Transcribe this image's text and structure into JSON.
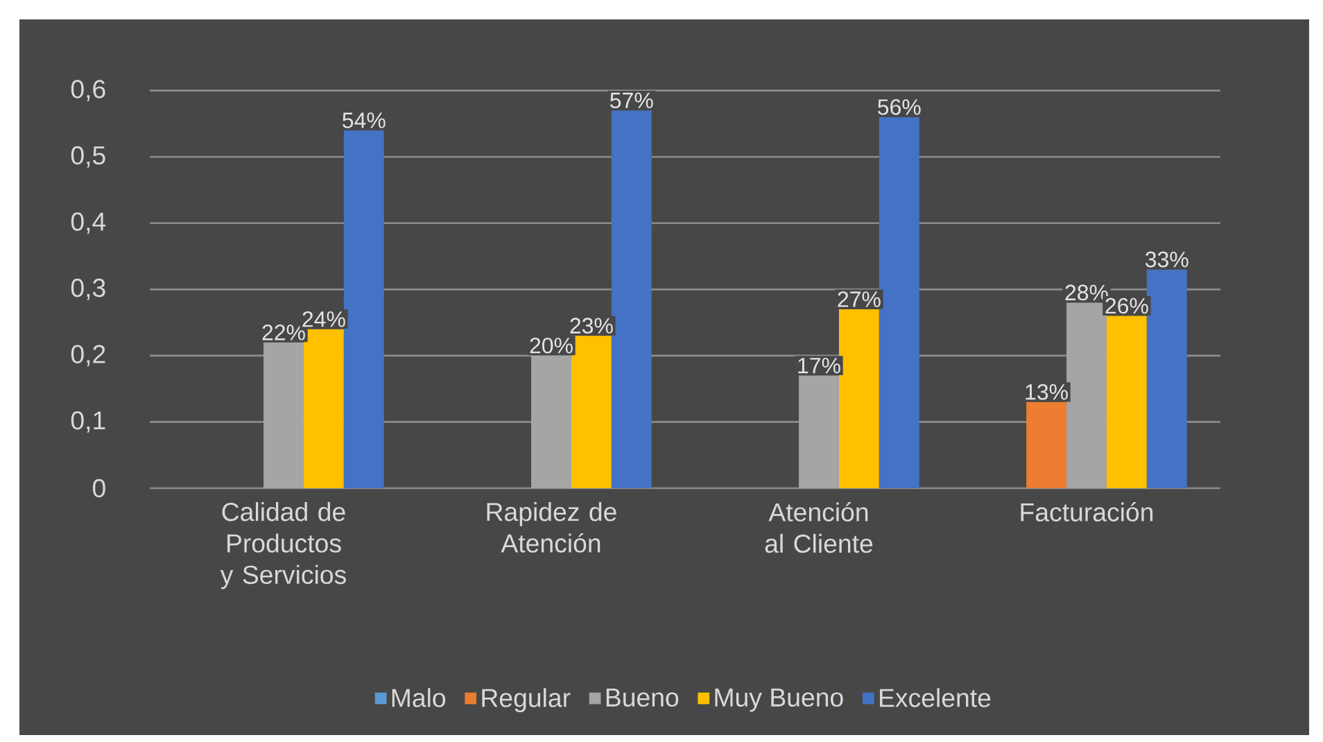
{
  "chart_data": {
    "type": "bar",
    "categories": [
      "Calidad de Productos y Servicios",
      "Rapidez de Atención",
      "Atención al Cliente",
      "Facturación"
    ],
    "series": [
      {
        "name": "Malo",
        "color": "#5b9bd5",
        "values": [
          null,
          null,
          null,
          null
        ],
        "value_labels": [
          null,
          null,
          null,
          null
        ]
      },
      {
        "name": "Regular",
        "color": "#ed7d31",
        "values": [
          null,
          null,
          null,
          0.13
        ],
        "value_labels": [
          null,
          null,
          null,
          "13%"
        ]
      },
      {
        "name": "Bueno",
        "color": "#a5a5a5",
        "values": [
          0.22,
          0.2,
          0.17,
          0.28
        ],
        "value_labels": [
          "22%",
          "20%",
          "17%",
          "28%"
        ]
      },
      {
        "name": "Muy Bueno",
        "color": "#ffc000",
        "values": [
          0.24,
          0.23,
          0.27,
          0.26
        ],
        "value_labels": [
          "24%",
          "23%",
          "27%",
          "26%"
        ]
      },
      {
        "name": "Excelente",
        "color": "#4472c4",
        "values": [
          0.54,
          0.57,
          0.56,
          0.33
        ],
        "value_labels": [
          "54%",
          "57%",
          "56%",
          "33%"
        ]
      }
    ],
    "ylim": [
      0,
      0.6
    ],
    "yticks": [
      0,
      {
        "value": 0.1,
        "label": "0,1"
      },
      {
        "value": 0.2,
        "label": "0,2"
      },
      {
        "value": 0.3,
        "label": "0,3"
      },
      {
        "value": 0.4,
        "label": "0,4"
      },
      {
        "value": 0.5,
        "label": "0,5"
      },
      {
        "value": 0.6,
        "label": "0,6"
      }
    ],
    "grid": "y",
    "legend": "bottom"
  }
}
